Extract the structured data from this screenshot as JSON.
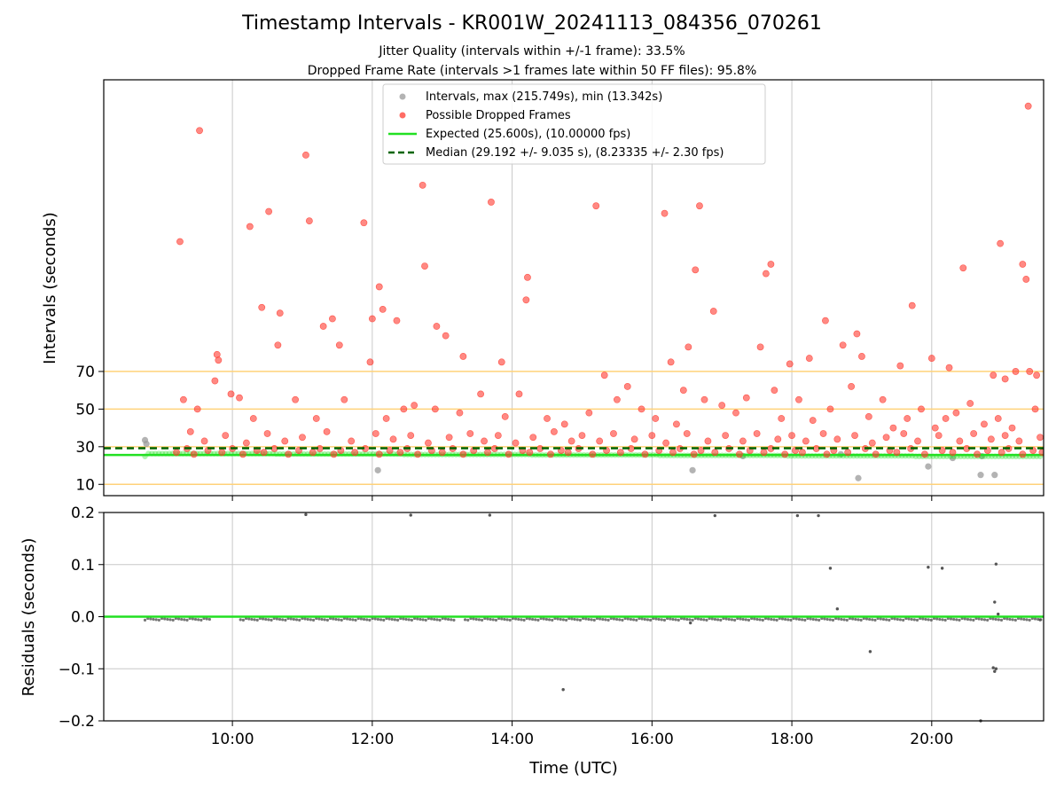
{
  "title": "Timestamp Intervals - KR001W_20241113_084356_070261",
  "subtitles": [
    "Jitter Quality (intervals within +/-1 frame): 33.5%",
    "Dropped Frame Rate (intervals >1 frames late within 50 FF files): 95.8%"
  ],
  "colors": {
    "intervals": "#9a9a9a",
    "dropped": "#ff3b30",
    "expected": "#22e022",
    "median": "#006400",
    "threshold": "#ffd27a",
    "grid": "#c8c8c8",
    "residual": "#555555"
  },
  "chart_data": [
    {
      "type": "scatter",
      "ylabel": "Intervals (seconds)",
      "xlim": [
        8.16,
        21.6
      ],
      "ylim": [
        4,
        225
      ],
      "yticks": [
        10,
        30,
        50,
        70
      ],
      "ytick_labels": [
        "10",
        "30",
        "50",
        "70"
      ],
      "threshold_lines": [
        10,
        30,
        50,
        70
      ],
      "grid": true,
      "legend": {
        "placement": "top-center",
        "entries": [
          "Intervals, max (215.749s), min (13.342s)",
          "Possible Dropped Frames",
          "Expected (25.600s), (10.00000 fps)",
          "Median (29.192 +/- 9.035 s), (8.23335 +/- 2.30 fps)"
        ]
      },
      "series": [
        {
          "name": "Intervals, max (215.749s), min (13.342s)",
          "points": [
            [
              8.75,
              33.5
            ],
            [
              8.77,
              31.5
            ],
            [
              12.08,
              17.5
            ],
            [
              16.58,
              17.5
            ],
            [
              17.3,
              25
            ],
            [
              18.7,
              26
            ],
            [
              18.95,
              13.3
            ],
            [
              19.95,
              19.5
            ],
            [
              20.3,
              24
            ],
            [
              20.7,
              15
            ],
            [
              20.9,
              15
            ],
            [
              20.72,
              25
            ]
          ]
        },
        {
          "name": "Possible Dropped Frames",
          "points": [
            [
              9.25,
              139
            ],
            [
              9.53,
              198
            ],
            [
              10.25,
              147
            ],
            [
              10.52,
              155
            ],
            [
              11.05,
              185
            ],
            [
              11.1,
              150
            ],
            [
              12.72,
              169
            ],
            [
              13.7,
              160
            ],
            [
              15.2,
              158
            ],
            [
              16.18,
              154
            ],
            [
              16.68,
              158
            ],
            [
              21.38,
              211
            ],
            [
              20.98,
              138
            ],
            [
              21.3,
              127
            ],
            [
              21.35,
              119
            ],
            [
              12.1,
              115
            ],
            [
              12.15,
              103
            ],
            [
              12.35,
              97
            ],
            [
              12.0,
              98
            ],
            [
              12.75,
              126
            ],
            [
              12.92,
              94
            ],
            [
              13.05,
              89
            ],
            [
              13.3,
              78
            ],
            [
              14.22,
              120
            ],
            [
              14.2,
              108
            ],
            [
              16.62,
              124
            ],
            [
              16.88,
              102
            ],
            [
              17.7,
              127
            ],
            [
              17.63,
              122
            ],
            [
              18.48,
              97
            ],
            [
              18.93,
              90
            ],
            [
              19.72,
              105
            ],
            [
              20.0,
              77
            ],
            [
              20.45,
              125
            ],
            [
              10.42,
              104
            ],
            [
              10.68,
              101
            ],
            [
              11.3,
              94
            ],
            [
              11.43,
              98
            ],
            [
              11.53,
              84
            ],
            [
              11.88,
              149
            ],
            [
              11.97,
              75
            ],
            [
              10.65,
              84
            ],
            [
              9.98,
              58
            ],
            [
              9.78,
              79
            ],
            [
              9.8,
              76
            ],
            [
              13.85,
              75
            ],
            [
              15.32,
              68
            ],
            [
              16.52,
              83
            ],
            [
              16.27,
              75
            ],
            [
              17.55,
              83
            ],
            [
              17.97,
              74
            ],
            [
              18.25,
              77
            ],
            [
              18.73,
              84
            ],
            [
              19.0,
              78
            ],
            [
              19.55,
              73
            ],
            [
              20.25,
              72
            ],
            [
              20.88,
              68
            ],
            [
              21.05,
              66
            ],
            [
              21.4,
              70
            ],
            [
              21.5,
              68
            ],
            [
              21.2,
              70
            ],
            [
              9.3,
              55
            ],
            [
              9.5,
              50
            ],
            [
              9.75,
              65
            ],
            [
              10.1,
              56
            ],
            [
              10.3,
              45
            ],
            [
              10.9,
              55
            ],
            [
              11.2,
              45
            ],
            [
              11.6,
              55
            ],
            [
              12.2,
              45
            ],
            [
              12.45,
              50
            ],
            [
              12.6,
              52
            ],
            [
              12.9,
              50
            ],
            [
              13.25,
              48
            ],
            [
              13.55,
              58
            ],
            [
              13.9,
              46
            ],
            [
              14.1,
              58
            ],
            [
              14.5,
              45
            ],
            [
              14.75,
              42
            ],
            [
              15.1,
              48
            ],
            [
              15.5,
              55
            ],
            [
              15.65,
              62
            ],
            [
              15.85,
              50
            ],
            [
              16.05,
              45
            ],
            [
              16.35,
              42
            ],
            [
              16.45,
              60
            ],
            [
              16.75,
              55
            ],
            [
              17.0,
              52
            ],
            [
              17.2,
              48
            ],
            [
              17.35,
              56
            ],
            [
              17.75,
              60
            ],
            [
              17.85,
              45
            ],
            [
              18.1,
              55
            ],
            [
              18.3,
              44
            ],
            [
              18.55,
              50
            ],
            [
              18.85,
              62
            ],
            [
              19.1,
              46
            ],
            [
              19.3,
              55
            ],
            [
              19.45,
              40
            ],
            [
              19.65,
              45
            ],
            [
              19.85,
              50
            ],
            [
              20.05,
              40
            ],
            [
              20.2,
              45
            ],
            [
              20.35,
              48
            ],
            [
              20.55,
              53
            ],
            [
              20.75,
              42
            ],
            [
              20.95,
              45
            ],
            [
              21.15,
              40
            ],
            [
              21.48,
              50
            ],
            [
              9.4,
              38
            ],
            [
              9.6,
              33
            ],
            [
              9.9,
              36
            ],
            [
              10.2,
              32
            ],
            [
              10.5,
              37
            ],
            [
              10.75,
              33
            ],
            [
              11.0,
              35
            ],
            [
              11.35,
              38
            ],
            [
              11.7,
              33
            ],
            [
              12.05,
              37
            ],
            [
              12.3,
              34
            ],
            [
              12.55,
              36
            ],
            [
              12.8,
              32
            ],
            [
              13.1,
              35
            ],
            [
              13.4,
              37
            ],
            [
              13.6,
              33
            ],
            [
              13.8,
              36
            ],
            [
              14.05,
              32
            ],
            [
              14.3,
              35
            ],
            [
              14.6,
              38
            ],
            [
              14.85,
              33
            ],
            [
              15.0,
              36
            ],
            [
              15.25,
              33
            ],
            [
              15.45,
              37
            ],
            [
              15.75,
              34
            ],
            [
              16.0,
              36
            ],
            [
              16.2,
              32
            ],
            [
              16.5,
              37
            ],
            [
              16.8,
              33
            ],
            [
              17.05,
              36
            ],
            [
              17.3,
              33
            ],
            [
              17.5,
              37
            ],
            [
              17.8,
              34
            ],
            [
              18.0,
              36
            ],
            [
              18.2,
              33
            ],
            [
              18.45,
              37
            ],
            [
              18.65,
              34
            ],
            [
              18.9,
              36
            ],
            [
              19.15,
              32
            ],
            [
              19.35,
              35
            ],
            [
              19.6,
              37
            ],
            [
              19.8,
              33
            ],
            [
              20.1,
              36
            ],
            [
              20.4,
              33
            ],
            [
              20.6,
              37
            ],
            [
              20.85,
              34
            ],
            [
              21.05,
              36
            ],
            [
              21.25,
              33
            ],
            [
              21.55,
              35
            ],
            [
              9.2,
              27
            ],
            [
              9.35,
              29
            ],
            [
              9.45,
              26
            ],
            [
              9.65,
              28
            ],
            [
              9.85,
              27
            ],
            [
              10.0,
              29
            ],
            [
              10.15,
              26
            ],
            [
              10.35,
              28
            ],
            [
              10.45,
              27
            ],
            [
              10.6,
              29
            ],
            [
              10.8,
              26
            ],
            [
              10.95,
              28
            ],
            [
              11.15,
              27
            ],
            [
              11.25,
              29
            ],
            [
              11.45,
              26
            ],
            [
              11.55,
              28
            ],
            [
              11.75,
              27
            ],
            [
              11.9,
              29
            ],
            [
              12.1,
              26
            ],
            [
              12.25,
              28
            ],
            [
              12.4,
              27
            ],
            [
              12.5,
              29
            ],
            [
              12.65,
              26
            ],
            [
              12.85,
              28
            ],
            [
              13.0,
              27
            ],
            [
              13.15,
              29
            ],
            [
              13.3,
              26
            ],
            [
              13.45,
              28
            ],
            [
              13.65,
              27
            ],
            [
              13.75,
              29
            ],
            [
              13.95,
              26
            ],
            [
              14.15,
              28
            ],
            [
              14.25,
              27
            ],
            [
              14.4,
              29
            ],
            [
              14.55,
              26
            ],
            [
              14.7,
              28
            ],
            [
              14.8,
              27
            ],
            [
              14.95,
              29
            ],
            [
              15.15,
              26
            ],
            [
              15.35,
              28
            ],
            [
              15.55,
              27
            ],
            [
              15.7,
              29
            ],
            [
              15.9,
              26
            ],
            [
              16.1,
              28
            ],
            [
              16.3,
              27
            ],
            [
              16.4,
              29
            ],
            [
              16.6,
              26
            ],
            [
              16.7,
              28
            ],
            [
              16.9,
              27
            ],
            [
              17.1,
              29
            ],
            [
              17.25,
              26
            ],
            [
              17.4,
              28
            ],
            [
              17.6,
              27
            ],
            [
              17.7,
              29
            ],
            [
              17.9,
              26
            ],
            [
              18.05,
              28
            ],
            [
              18.15,
              27
            ],
            [
              18.35,
              29
            ],
            [
              18.5,
              26
            ],
            [
              18.6,
              28
            ],
            [
              18.8,
              27
            ],
            [
              19.05,
              29
            ],
            [
              19.2,
              26
            ],
            [
              19.4,
              28
            ],
            [
              19.5,
              27
            ],
            [
              19.7,
              29
            ],
            [
              19.9,
              26
            ],
            [
              20.15,
              28
            ],
            [
              20.3,
              27
            ],
            [
              20.5,
              29
            ],
            [
              20.65,
              26
            ],
            [
              20.8,
              28
            ],
            [
              21.0,
              27
            ],
            [
              21.1,
              29
            ],
            [
              21.3,
              26
            ],
            [
              21.45,
              28
            ],
            [
              21.58,
              27
            ]
          ]
        },
        {
          "name": "Expected (25.600s), (10.00000 fps)",
          "y": 25.6
        },
        {
          "name": "Median (29.192 +/- 9.035 s), (8.23335 +/- 2.30 fps)",
          "y": 29.192
        }
      ]
    },
    {
      "type": "scatter",
      "xlabel": "Time (UTC)",
      "ylabel": "Residuals (seconds)",
      "xlim": [
        8.16,
        21.6
      ],
      "ylim": [
        -0.2,
        0.2
      ],
      "yticks": [
        -0.2,
        -0.1,
        0.0,
        0.1,
        0.2
      ],
      "ytick_labels": [
        "−0.2",
        "−0.1",
        "0.0",
        "0.1",
        "0.2"
      ],
      "xticks": [
        10,
        12,
        14,
        16,
        18,
        20
      ],
      "xtick_labels": [
        "10:00",
        "12:00",
        "14:00",
        "16:00",
        "18:00",
        "20:00"
      ],
      "grid": true,
      "zero_line": 0,
      "points": [
        [
          11.05,
          0.196
        ],
        [
          12.55,
          0.195
        ],
        [
          13.68,
          0.195
        ],
        [
          16.9,
          0.194
        ],
        [
          18.08,
          0.194
        ],
        [
          18.38,
          0.194
        ],
        [
          18.55,
          0.093
        ],
        [
          19.95,
          0.095
        ],
        [
          20.15,
          0.093
        ],
        [
          20.92,
          0.101
        ],
        [
          20.9,
          0.028
        ],
        [
          20.95,
          0.005
        ],
        [
          18.65,
          0.015
        ],
        [
          16.55,
          -0.012
        ],
        [
          19.12,
          -0.067
        ],
        [
          14.73,
          -0.14
        ],
        [
          20.88,
          -0.098
        ],
        [
          20.9,
          -0.105
        ],
        [
          20.92,
          -0.1
        ],
        [
          20.7,
          -0.2
        ],
        [
          21.55,
          -0.006
        ]
      ]
    }
  ]
}
